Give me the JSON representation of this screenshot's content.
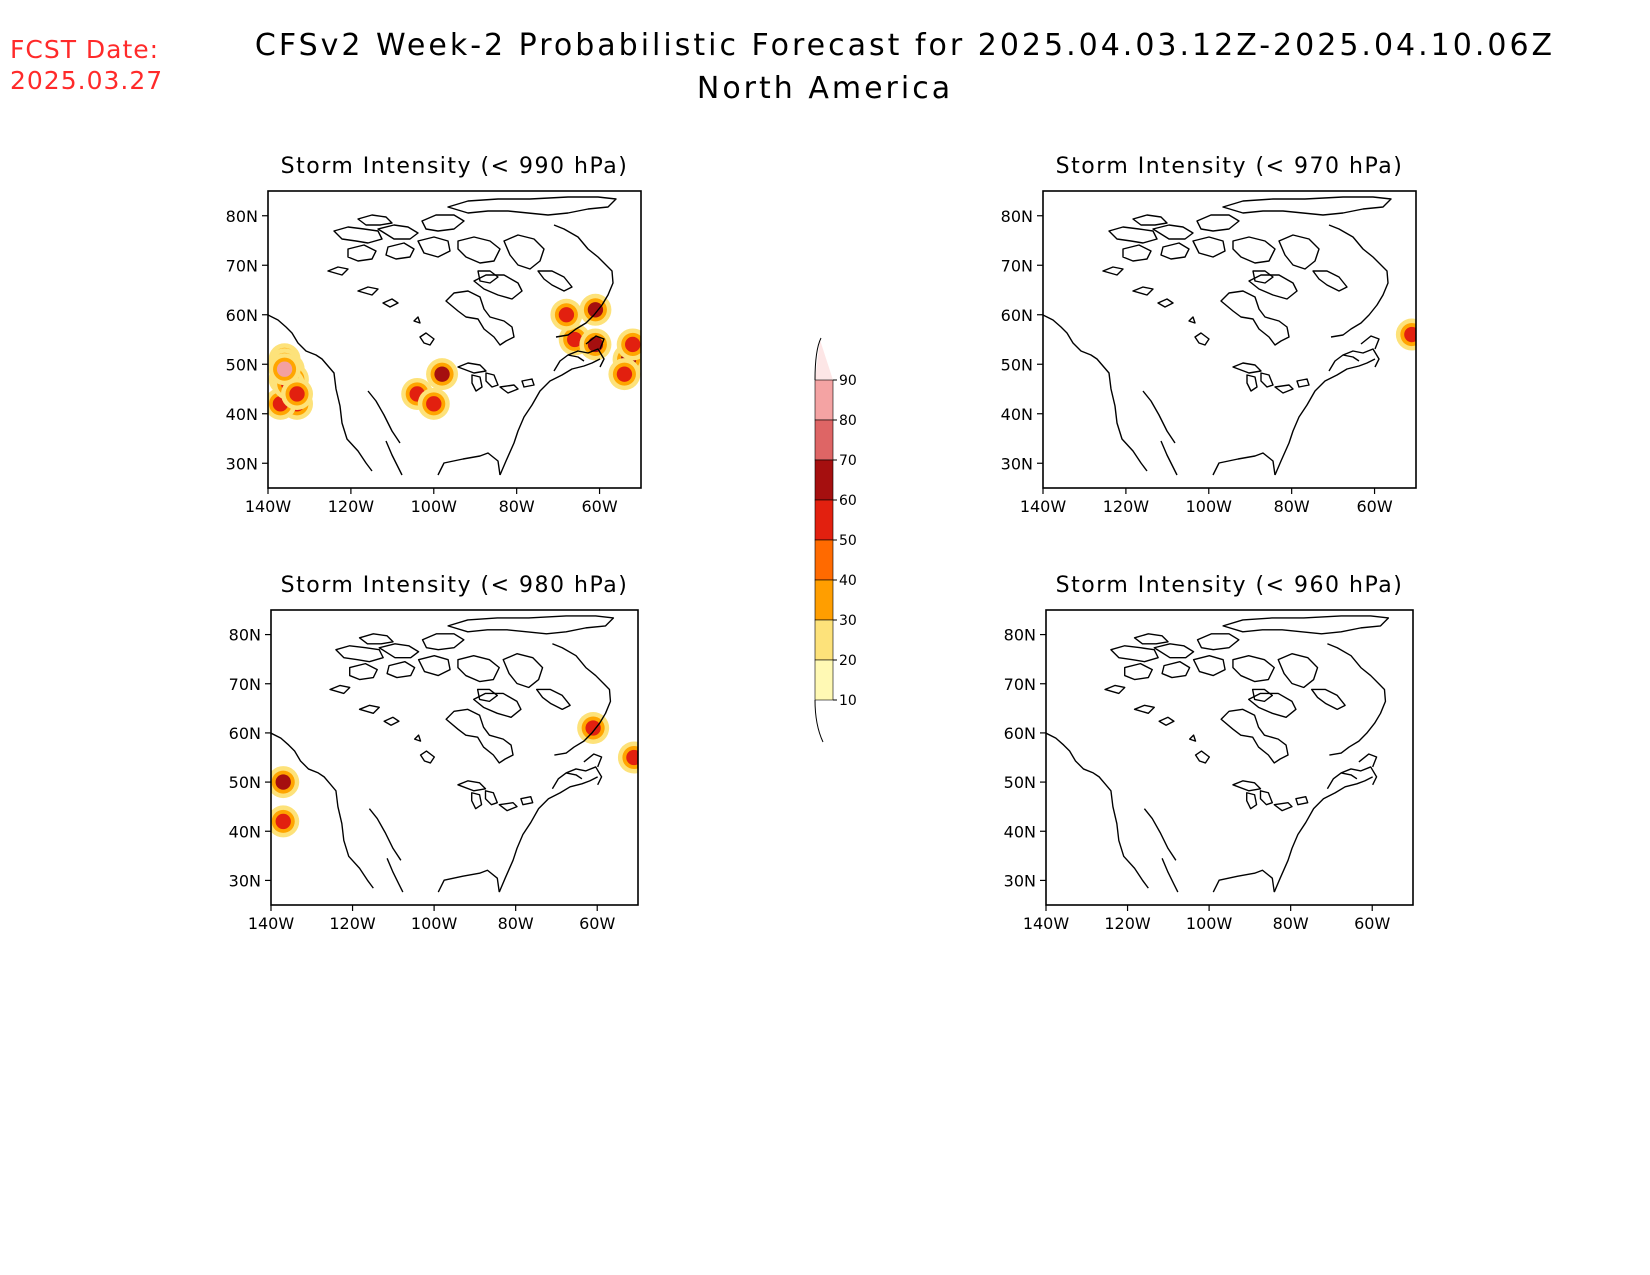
{
  "header": {
    "fcst_label": "FCST Date:",
    "fcst_date": "2025.03.27",
    "title": "CFSv2 Week-2 Probabilistic Forecast for 2025.04.03.12Z-2025.04.10.06Z",
    "subtitle": "North America"
  },
  "panels": [
    {
      "id": "990",
      "title": "Storm Intensity (< 990 hPa)",
      "lat_labels": [
        "80N",
        "70N",
        "60N",
        "50N",
        "40N",
        "30N"
      ],
      "lon_labels": [
        "140W",
        "120W",
        "100W",
        "80W",
        "60W"
      ],
      "blobs": [
        {
          "lon": -136,
          "lat": 51,
          "level": 2
        },
        {
          "lon": -135,
          "lat": 49,
          "level": 2
        },
        {
          "lon": -136,
          "lat": 47,
          "level": 2
        },
        {
          "lon": -135,
          "lat": 44,
          "level": 2
        },
        {
          "lon": -133,
          "lat": 42,
          "level": 2
        },
        {
          "lon": -137,
          "lat": 42,
          "level": 2
        },
        {
          "lon": -134,
          "lat": 47,
          "level": 1
        },
        {
          "lon": -136,
          "lat": 50,
          "level": 3
        },
        {
          "lon": -135,
          "lat": 46,
          "level": 3
        },
        {
          "lon": -133,
          "lat": 44,
          "level": 3
        },
        {
          "lon": -136,
          "lat": 49,
          "level": 0
        },
        {
          "lon": -104,
          "lat": 44,
          "level": 2
        },
        {
          "lon": -98,
          "lat": 48,
          "level": 1
        },
        {
          "lon": -100,
          "lat": 42,
          "level": 2
        },
        {
          "lon": -66,
          "lat": 55,
          "level": 2
        },
        {
          "lon": -61,
          "lat": 54,
          "level": 1
        },
        {
          "lon": -61,
          "lat": 61,
          "level": 1
        },
        {
          "lon": -68,
          "lat": 60,
          "level": 3
        },
        {
          "lon": -53,
          "lat": 51,
          "level": 1
        },
        {
          "lon": -54,
          "lat": 48,
          "level": 2
        },
        {
          "lon": -52,
          "lat": 54,
          "level": 3
        }
      ]
    },
    {
      "id": "970",
      "title": "Storm Intensity (< 970 hPa)",
      "lat_labels": [
        "80N",
        "70N",
        "60N",
        "50N",
        "40N",
        "30N"
      ],
      "lon_labels": [
        "140W",
        "120W",
        "100W",
        "80W",
        "60W"
      ],
      "blobs": [
        {
          "lon": -51,
          "lat": 56,
          "level": 3
        }
      ]
    },
    {
      "id": "980",
      "title": "Storm Intensity (< 980 hPa)",
      "lat_labels": [
        "80N",
        "70N",
        "60N",
        "50N",
        "40N",
        "30N"
      ],
      "lon_labels": [
        "140W",
        "120W",
        "100W",
        "80W",
        "60W"
      ],
      "blobs": [
        {
          "lon": -137,
          "lat": 50,
          "level": 1
        },
        {
          "lon": -137,
          "lat": 42,
          "level": 2
        },
        {
          "lon": -61,
          "lat": 61,
          "level": 2
        },
        {
          "lon": -51,
          "lat": 55,
          "level": 3
        }
      ]
    },
    {
      "id": "960",
      "title": "Storm Intensity (< 960 hPa)",
      "lat_labels": [
        "80N",
        "70N",
        "60N",
        "50N",
        "40N",
        "30N"
      ],
      "lon_labels": [
        "140W",
        "120W",
        "100W",
        "80W",
        "60W"
      ],
      "blobs": []
    }
  ],
  "colorbar": {
    "labels": [
      "90",
      "80",
      "70",
      "60",
      "50",
      "40",
      "30",
      "20",
      "10"
    ],
    "colors": [
      "#fde6e6",
      "#f4a3a3",
      "#de6565",
      "#a50f0f",
      "#e2200f",
      "#ff6a00",
      "#ff9e00",
      "#fde27a",
      "#fff9b4"
    ]
  },
  "level_colors": [
    "#f3a0a0",
    "#a50f0f",
    "#e2200f",
    "#ffa500",
    "#fde27a"
  ]
}
